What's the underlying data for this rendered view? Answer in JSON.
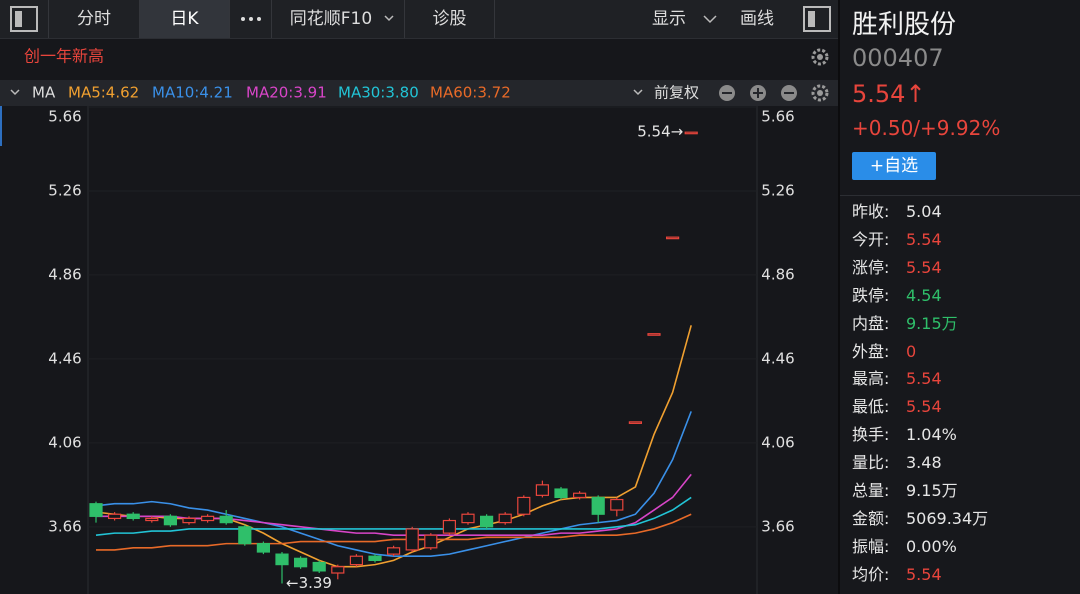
{
  "toolbar": {
    "tabs": [
      "分时",
      "日K",
      "同花顺F10",
      "诊股"
    ],
    "right": [
      "显示",
      "画线"
    ]
  },
  "chart_header": {
    "indicator": "MA",
    "adjust": "前复权"
  },
  "chart_data": {
    "type": "candlestick",
    "annotation": "创一年新高",
    "open": [
      3.77,
      3.7,
      3.72,
      3.69,
      3.71,
      3.68,
      3.69,
      3.71,
      3.66,
      3.58,
      3.53,
      3.51,
      3.49,
      3.44,
      3.48,
      3.52,
      3.53,
      3.55,
      3.56,
      3.63,
      3.68,
      3.71,
      3.68,
      3.72,
      3.81,
      3.84,
      3.8,
      3.8,
      3.74,
      4.16,
      4.58,
      5.04,
      5.54
    ],
    "high": [
      3.78,
      3.73,
      3.73,
      3.71,
      3.72,
      3.71,
      3.72,
      3.74,
      3.67,
      3.59,
      3.54,
      3.52,
      3.5,
      3.48,
      3.53,
      3.53,
      3.57,
      3.66,
      3.63,
      3.7,
      3.73,
      3.72,
      3.73,
      3.81,
      3.88,
      3.85,
      3.83,
      3.81,
      3.8,
      4.16,
      4.58,
      5.04,
      5.54
    ],
    "low": [
      3.68,
      3.69,
      3.69,
      3.68,
      3.66,
      3.67,
      3.68,
      3.67,
      3.57,
      3.53,
      3.39,
      3.46,
      3.44,
      3.41,
      3.47,
      3.49,
      3.52,
      3.54,
      3.55,
      3.62,
      3.67,
      3.65,
      3.67,
      3.71,
      3.8,
      3.79,
      3.79,
      3.68,
      3.71,
      4.16,
      4.58,
      5.04,
      5.54
    ],
    "close": [
      3.71,
      3.72,
      3.7,
      3.7,
      3.67,
      3.7,
      3.71,
      3.68,
      3.58,
      3.54,
      3.48,
      3.47,
      3.45,
      3.47,
      3.52,
      3.5,
      3.56,
      3.65,
      3.62,
      3.69,
      3.72,
      3.66,
      3.72,
      3.8,
      3.86,
      3.8,
      3.82,
      3.72,
      3.79,
      4.16,
      4.58,
      5.04,
      5.54
    ],
    "up_color": "#e8453c",
    "down_color": "#2fbf6a",
    "series": [
      {
        "name": "MA5",
        "label": "MA5:4.62",
        "color": "#f0a030",
        "values": [
          3.73,
          3.72,
          3.71,
          3.71,
          3.7,
          3.7,
          3.7,
          3.7,
          3.67,
          3.63,
          3.58,
          3.54,
          3.5,
          3.47,
          3.47,
          3.48,
          3.5,
          3.54,
          3.57,
          3.61,
          3.65,
          3.67,
          3.69,
          3.72,
          3.76,
          3.79,
          3.8,
          3.8,
          3.8,
          3.85,
          4.1,
          4.3,
          4.62
        ]
      },
      {
        "name": "MA10",
        "label": "MA10:4.21",
        "color": "#3a90e8",
        "values": [
          3.76,
          3.77,
          3.77,
          3.78,
          3.77,
          3.75,
          3.74,
          3.72,
          3.7,
          3.68,
          3.66,
          3.63,
          3.6,
          3.57,
          3.55,
          3.53,
          3.52,
          3.52,
          3.52,
          3.53,
          3.55,
          3.57,
          3.59,
          3.61,
          3.63,
          3.65,
          3.67,
          3.68,
          3.69,
          3.72,
          3.82,
          3.98,
          4.21
        ]
      },
      {
        "name": "MA20",
        "label": "MA20:3.91",
        "color": "#d845c8",
        "values": [
          3.71,
          3.71,
          3.71,
          3.71,
          3.71,
          3.7,
          3.7,
          3.7,
          3.69,
          3.68,
          3.67,
          3.66,
          3.65,
          3.64,
          3.63,
          3.63,
          3.62,
          3.62,
          3.62,
          3.62,
          3.62,
          3.62,
          3.62,
          3.62,
          3.62,
          3.63,
          3.63,
          3.64,
          3.65,
          3.68,
          3.74,
          3.8,
          3.91
        ]
      },
      {
        "name": "MA30",
        "label": "MA30:3.80",
        "color": "#22c4d6",
        "values": [
          3.62,
          3.63,
          3.63,
          3.64,
          3.64,
          3.65,
          3.65,
          3.65,
          3.65,
          3.65,
          3.65,
          3.65,
          3.65,
          3.65,
          3.65,
          3.65,
          3.65,
          3.65,
          3.65,
          3.65,
          3.65,
          3.65,
          3.65,
          3.65,
          3.65,
          3.65,
          3.65,
          3.65,
          3.66,
          3.67,
          3.7,
          3.74,
          3.8
        ]
      },
      {
        "name": "MA60",
        "label": "MA60:3.72",
        "color": "#e86a28",
        "values": [
          3.55,
          3.55,
          3.56,
          3.56,
          3.57,
          3.57,
          3.57,
          3.58,
          3.58,
          3.58,
          3.58,
          3.59,
          3.59,
          3.59,
          3.59,
          3.59,
          3.6,
          3.6,
          3.6,
          3.6,
          3.6,
          3.61,
          3.61,
          3.61,
          3.61,
          3.61,
          3.62,
          3.62,
          3.62,
          3.63,
          3.65,
          3.68,
          3.72
        ]
      }
    ],
    "high_label": "5.54→",
    "low_label": "←3.39",
    "ylim": [
      3.34,
      5.66
    ],
    "yticks": [
      5.66,
      5.26,
      4.86,
      4.46,
      4.06,
      3.66
    ],
    "grid": true
  },
  "sidebar": {
    "name": "胜利股份",
    "code": "000407",
    "price": "5.54↑",
    "change": "+0.50/+9.92%",
    "button": "+自选",
    "rows": [
      {
        "label": "昨收:",
        "value": "5.04",
        "color": "white"
      },
      {
        "label": "今开:",
        "value": "5.54",
        "color": "red"
      },
      {
        "label": "涨停:",
        "value": "5.54",
        "color": "red"
      },
      {
        "label": "跌停:",
        "value": "4.54",
        "color": "green"
      },
      {
        "label": "内盘:",
        "value": "9.15万",
        "color": "green"
      },
      {
        "label": "外盘:",
        "value": "0",
        "color": "red"
      },
      {
        "label": "最高:",
        "value": "5.54",
        "color": "red"
      },
      {
        "label": "最低:",
        "value": "5.54",
        "color": "red"
      },
      {
        "label": "换手:",
        "value": "1.04%",
        "color": "white"
      },
      {
        "label": "量比:",
        "value": "3.48",
        "color": "white"
      },
      {
        "label": "总量:",
        "value": "9.15万",
        "color": "white"
      },
      {
        "label": "金额:",
        "value": "5069.34万",
        "color": "white"
      },
      {
        "label": "振幅:",
        "value": "0.00%",
        "color": "white"
      },
      {
        "label": "均价:",
        "value": "5.54",
        "color": "red"
      }
    ]
  }
}
